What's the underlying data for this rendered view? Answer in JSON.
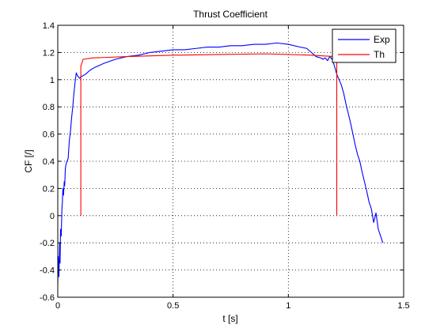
{
  "chart_data": {
    "type": "line",
    "title": "Thrust Coefficient",
    "xlabel": "t [s]",
    "ylabel": "CF [/]",
    "xlim": [
      0,
      1.5
    ],
    "ylim": [
      -0.6,
      1.4
    ],
    "xticks": [
      0,
      0.5,
      1,
      1.5
    ],
    "xtick_labels": [
      "0",
      "0.5",
      "1",
      "1.5"
    ],
    "yticks": [
      -0.6,
      -0.4,
      -0.2,
      0,
      0.2,
      0.4,
      0.6,
      0.8,
      1,
      1.2,
      1.4
    ],
    "ytick_labels": [
      "-0.6",
      "-0.4",
      "-0.2",
      "0",
      "0.2",
      "0.4",
      "0.6",
      "0.8",
      "1",
      "1.2",
      "1.4"
    ],
    "grid": true,
    "legend_position": "top-right",
    "series": [
      {
        "name": "Exp",
        "color": "#0000ff",
        "x": [
          0.0,
          0.002,
          0.005,
          0.008,
          0.01,
          0.012,
          0.015,
          0.018,
          0.02,
          0.022,
          0.025,
          0.028,
          0.03,
          0.033,
          0.036,
          0.04,
          0.045,
          0.05,
          0.055,
          0.06,
          0.065,
          0.07,
          0.075,
          0.08,
          0.085,
          0.09,
          0.095,
          0.1,
          0.11,
          0.12,
          0.14,
          0.16,
          0.2,
          0.25,
          0.3,
          0.35,
          0.4,
          0.45,
          0.5,
          0.55,
          0.6,
          0.65,
          0.7,
          0.75,
          0.8,
          0.85,
          0.9,
          0.95,
          1.0,
          1.05,
          1.08,
          1.1,
          1.12,
          1.14,
          1.15,
          1.16,
          1.17,
          1.18,
          1.19,
          1.2,
          1.21,
          1.22,
          1.23,
          1.24,
          1.25,
          1.26,
          1.27,
          1.28,
          1.29,
          1.3,
          1.31,
          1.32,
          1.33,
          1.34,
          1.35,
          1.36,
          1.37,
          1.38,
          1.39,
          1.4,
          1.41
        ],
        "y": [
          -0.5,
          -0.3,
          -0.45,
          -0.2,
          -0.35,
          -0.1,
          -0.15,
          0.05,
          0.1,
          0.2,
          0.15,
          0.25,
          0.22,
          0.35,
          0.38,
          0.4,
          0.42,
          0.55,
          0.62,
          0.72,
          0.8,
          0.9,
          0.98,
          1.05,
          1.03,
          1.02,
          1.01,
          1.02,
          1.03,
          1.04,
          1.07,
          1.09,
          1.12,
          1.15,
          1.17,
          1.18,
          1.2,
          1.21,
          1.22,
          1.22,
          1.23,
          1.24,
          1.24,
          1.25,
          1.25,
          1.26,
          1.26,
          1.27,
          1.26,
          1.24,
          1.23,
          1.2,
          1.17,
          1.16,
          1.15,
          1.16,
          1.14,
          1.17,
          1.15,
          1.1,
          1.04,
          1.0,
          0.96,
          0.9,
          0.82,
          0.75,
          0.68,
          0.6,
          0.52,
          0.45,
          0.4,
          0.32,
          0.25,
          0.18,
          0.1,
          0.05,
          -0.05,
          0.02,
          -0.1,
          -0.15,
          -0.2
        ]
      },
      {
        "name": "Th",
        "color": "#ff0000",
        "x": [
          0.1,
          0.1,
          0.11,
          0.15,
          0.3,
          0.5,
          0.7,
          0.9,
          1.0,
          1.1,
          1.2,
          1.21,
          1.21
        ],
        "y": [
          0,
          1.1,
          1.15,
          1.16,
          1.17,
          1.18,
          1.185,
          1.19,
          1.185,
          1.18,
          1.17,
          1.15,
          0
        ]
      }
    ]
  }
}
